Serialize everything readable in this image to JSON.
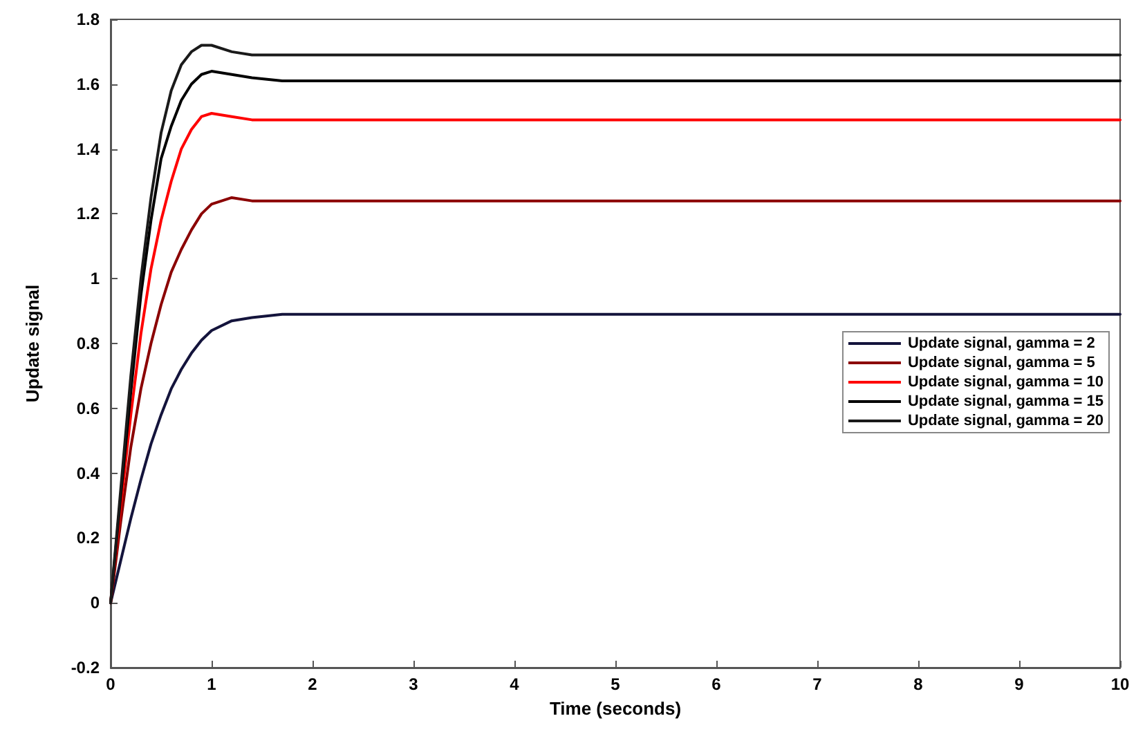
{
  "chart_data": {
    "type": "line",
    "xlabel": "Time (seconds)",
    "ylabel": "Update signal",
    "x": [
      0,
      0.1,
      0.2,
      0.3,
      0.4,
      0.5,
      0.6,
      0.7,
      0.8,
      0.9,
      1.0,
      1.2,
      1.4,
      1.7,
      2,
      10
    ],
    "series": [
      {
        "name": "Update signal, gamma = 2",
        "color": "#14143c",
        "values": [
          0,
          0.13,
          0.26,
          0.38,
          0.49,
          0.58,
          0.66,
          0.72,
          0.77,
          0.81,
          0.84,
          0.87,
          0.88,
          0.89,
          0.89,
          0.89
        ]
      },
      {
        "name": "Update signal, gamma = 5",
        "color": "#8b0000",
        "values": [
          0,
          0.25,
          0.48,
          0.66,
          0.8,
          0.92,
          1.02,
          1.09,
          1.15,
          1.2,
          1.23,
          1.25,
          1.24,
          1.24,
          1.24,
          1.24
        ]
      },
      {
        "name": "Update signal, gamma = 10",
        "color": "#ff0000",
        "values": [
          0,
          0.3,
          0.58,
          0.83,
          1.03,
          1.18,
          1.3,
          1.4,
          1.46,
          1.5,
          1.51,
          1.5,
          1.49,
          1.49,
          1.49,
          1.49
        ]
      },
      {
        "name": "Update signal, gamma = 15",
        "color": "#000000",
        "values": [
          0,
          0.33,
          0.65,
          0.95,
          1.18,
          1.37,
          1.47,
          1.55,
          1.6,
          1.63,
          1.64,
          1.63,
          1.62,
          1.61,
          1.61,
          1.61
        ]
      },
      {
        "name": "Update signal, gamma = 20",
        "color": "#1a1a1a",
        "values": [
          0,
          0.35,
          0.7,
          1.0,
          1.25,
          1.45,
          1.58,
          1.66,
          1.7,
          1.72,
          1.72,
          1.7,
          1.69,
          1.69,
          1.69,
          1.69
        ]
      }
    ],
    "xlim": [
      0,
      10
    ],
    "xticks": [
      0,
      1,
      2,
      3,
      4,
      5,
      6,
      7,
      8,
      9,
      10
    ],
    "ylim": [
      -0.2,
      1.8
    ],
    "yticks": [
      -0.2,
      0,
      0.2,
      0.4,
      0.6,
      0.8,
      1,
      1.2,
      1.4,
      1.6,
      1.8
    ],
    "grid": false,
    "legend": "right",
    "marker": "none",
    "line_style": "solid"
  }
}
